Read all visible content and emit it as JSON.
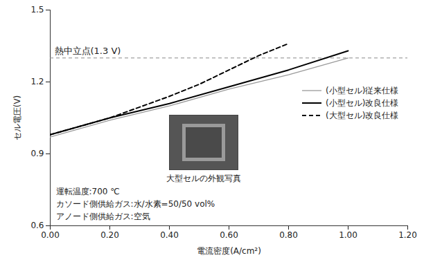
{
  "chart_data": {
    "type": "line",
    "x_label": "電流密度(A/cm²)",
    "y_label": "セル電圧(V)",
    "xlim": [
      0,
      1.2
    ],
    "xticks": [
      {
        "value": 0,
        "label": "0.00"
      },
      {
        "value": 0.2,
        "label": "0.20"
      },
      {
        "value": 0.4,
        "label": "0.40"
      },
      {
        "value": 0.6,
        "label": "0.60"
      },
      {
        "value": 0.8,
        "label": "0.80"
      },
      {
        "value": 1.0,
        "label": "1.00"
      },
      {
        "value": 1.2,
        "label": "1.20"
      }
    ],
    "ylim": [
      0.6,
      1.5
    ],
    "yticks": [
      0.6,
      0.9,
      1.2,
      1.5
    ],
    "grid": false,
    "legend": "right",
    "series": [
      {
        "name": "(小型セル)従来仕様",
        "color": "#9a9a9a",
        "line_style": "solid",
        "x": [
          0,
          0.2,
          0.4,
          0.6,
          0.8,
          1.0
        ],
        "values": [
          0.97,
          1.04,
          1.1,
          1.17,
          1.23,
          1.3
        ]
      },
      {
        "name": "(小型セル)改良仕様",
        "color": "#000000",
        "line_style": "solid",
        "x": [
          0,
          0.2,
          0.4,
          0.6,
          0.8,
          1.0
        ],
        "values": [
          0.98,
          1.05,
          1.11,
          1.18,
          1.25,
          1.33
        ]
      },
      {
        "name": "(大型セル)改良仕様",
        "color": "#000000",
        "line_style": "dashed",
        "x": [
          0,
          0.2,
          0.4,
          0.5,
          0.6,
          0.7,
          0.8
        ],
        "values": [
          0.98,
          1.05,
          1.14,
          1.19,
          1.25,
          1.31,
          1.36
        ]
      }
    ],
    "reference_lines": [
      {
        "y": 1.3,
        "label": "熱中立点(1.3 V)"
      }
    ],
    "annotations": [
      "運転温度:700 ℃",
      "カソード側供給ガス:水/水素=50/50 vol%",
      "アノード側供給ガス:空気"
    ],
    "photo_caption": "大型セルの外観写真"
  }
}
